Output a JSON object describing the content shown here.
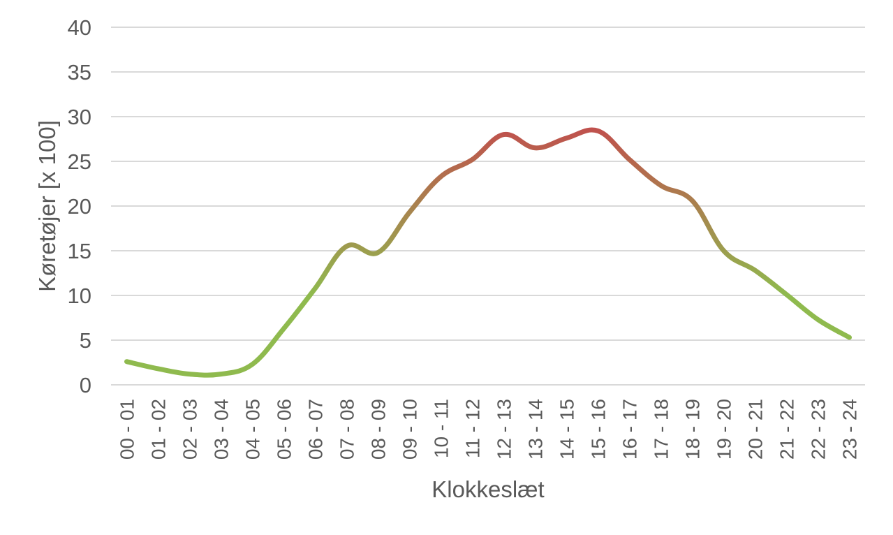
{
  "chart_data": {
    "type": "line",
    "categories": [
      "00 - 01",
      "01 - 02",
      "02 - 03",
      "03 - 04",
      "04 - 05",
      "05 - 06",
      "06 - 07",
      "07 - 08",
      "08 - 09",
      "09 - 10",
      "10 - 11",
      "11 - 12",
      "12 - 13",
      "13 - 14",
      "14 - 15",
      "15 - 16",
      "16 - 17",
      "17 - 18",
      "18 - 19",
      "19 - 20",
      "20 - 21",
      "21 - 22",
      "22 - 23",
      "23 - 24"
    ],
    "series": [
      {
        "values": [
          2.6,
          1.8,
          1.2,
          1.2,
          2.3,
          6.3,
          10.8,
          15.5,
          14.8,
          19.3,
          23.3,
          25.2,
          28.0,
          26.5,
          27.6,
          28.4,
          25.2,
          22.3,
          20.6,
          15.0,
          12.8,
          10.1,
          7.3,
          5.3
        ]
      }
    ],
    "xlabel": "Klokkeslæt",
    "ylabel": "Køretøjer [x 100]",
    "ylim": [
      0,
      40
    ],
    "yticks": [
      0,
      5,
      10,
      15,
      20,
      25,
      30,
      35,
      40
    ],
    "grid": true,
    "legend": "none",
    "colors": {
      "low": "#8fba4e",
      "high": "#c0504d",
      "grid": "#d9d9d9",
      "text": "#595959"
    }
  }
}
